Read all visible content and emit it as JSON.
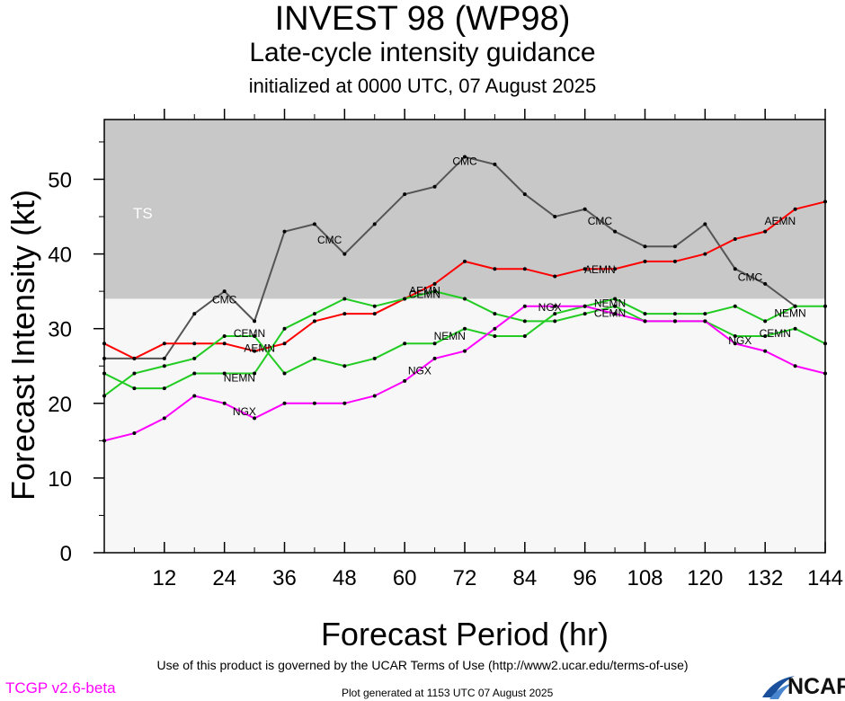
{
  "header": {
    "title": "INVEST 98 (WP98)",
    "subtitle": "Late-cycle intensity guidance",
    "initialized": "initialized at 0000 UTC, 07 August 2025"
  },
  "footer": {
    "terms": "Use of this product is governed by the UCAR Terms of Use (http://www2.ucar.edu/terms-of-use)",
    "version": "TCGP v2.6-beta",
    "generated": "Plot generated at 1153 UTC   07 August 2025",
    "logo_text": "NCAR"
  },
  "chart_data": {
    "type": "line",
    "xlabel": "Forecast Period (hr)",
    "ylabel": "Forecast Intensity (kt)",
    "xlim": [
      0,
      144
    ],
    "ylim": [
      0,
      58
    ],
    "xticks": [
      12,
      24,
      36,
      48,
      60,
      72,
      84,
      96,
      108,
      120,
      132,
      144
    ],
    "yticks": [
      0,
      10,
      20,
      30,
      40,
      50
    ],
    "bands": [
      {
        "label": "TS",
        "from": 34,
        "to": 58,
        "color": "#c8c8c8"
      },
      {
        "label": "",
        "from": 0,
        "to": 34,
        "color": "#f7f7f7"
      }
    ],
    "x": [
      0,
      6,
      12,
      18,
      24,
      30,
      36,
      42,
      48,
      54,
      60,
      66,
      72,
      78,
      84,
      90,
      96,
      102,
      108,
      114,
      120,
      126,
      132,
      138,
      144
    ],
    "series": [
      {
        "name": "CMC",
        "color": "#555555",
        "values": [
          26,
          26,
          26,
          32,
          35,
          31,
          43,
          44,
          40,
          44,
          48,
          49,
          53,
          52,
          48,
          45,
          46,
          43,
          41,
          41,
          44,
          38,
          36,
          33,
          null
        ]
      },
      {
        "name": "AEMN",
        "color": "#ff0000",
        "values": [
          28,
          26,
          28,
          28,
          28,
          27,
          28,
          31,
          32,
          32,
          34,
          36,
          39,
          38,
          38,
          37,
          38,
          38,
          39,
          39,
          40,
          42,
          43,
          46,
          47
        ]
      },
      {
        "name": "CEMN",
        "color": "#22cc22",
        "values": [
          24,
          22,
          22,
          24,
          24,
          24,
          30,
          32,
          34,
          33,
          34,
          35,
          34,
          32,
          31,
          31,
          32,
          33,
          31,
          31,
          31,
          29,
          29,
          30,
          28
        ]
      },
      {
        "name": "NEMN",
        "color": "#22cc22",
        "values": [
          21,
          24,
          25,
          26,
          29,
          29,
          24,
          26,
          25,
          26,
          28,
          28,
          30,
          29,
          29,
          32,
          33,
          34,
          32,
          32,
          32,
          33,
          31,
          33,
          33
        ]
      },
      {
        "name": "NGX",
        "color": "#ff00ff",
        "values": [
          15,
          16,
          18,
          21,
          20,
          18,
          20,
          20,
          20,
          21,
          23,
          26,
          27,
          30,
          33,
          33,
          33,
          32,
          31,
          31,
          31,
          28,
          27,
          25,
          24
        ]
      }
    ],
    "labels": [
      {
        "series": "CMC",
        "x": 24,
        "y": 34,
        "text": "CMC"
      },
      {
        "series": "CMC",
        "x": 45,
        "y": 42,
        "text": "CMC"
      },
      {
        "series": "CMC",
        "x": 72,
        "y": 52.5,
        "text": "CMC"
      },
      {
        "series": "CMC",
        "x": 99,
        "y": 44.5,
        "text": "CMC"
      },
      {
        "series": "CMC",
        "x": 129,
        "y": 37,
        "text": "CMC"
      },
      {
        "series": "AEMN",
        "x": 31,
        "y": 27.5,
        "text": "AEMN"
      },
      {
        "series": "AEMN",
        "x": 64,
        "y": 35.2,
        "text": "AEMN"
      },
      {
        "series": "AEMN",
        "x": 99,
        "y": 38,
        "text": "AEMN"
      },
      {
        "series": "AEMN",
        "x": 135,
        "y": 44.5,
        "text": "AEMN"
      },
      {
        "series": "CEMN",
        "x": 29,
        "y": 29.5,
        "text": "CEMN"
      },
      {
        "series": "CEMN",
        "x": 64,
        "y": 34.7,
        "text": "CEMN"
      },
      {
        "series": "CEMN",
        "x": 101,
        "y": 32.2,
        "text": "CEMN"
      },
      {
        "series": "CEMN",
        "x": 134,
        "y": 29.5,
        "text": "CEMN"
      },
      {
        "series": "NEMN",
        "x": 27,
        "y": 23.5,
        "text": "NEMN"
      },
      {
        "series": "NEMN",
        "x": 69,
        "y": 29.1,
        "text": "NEMN"
      },
      {
        "series": "NEMN",
        "x": 101,
        "y": 33.5,
        "text": "NEMN"
      },
      {
        "series": "NEMN",
        "x": 137,
        "y": 32.2,
        "text": "NEMN"
      },
      {
        "series": "NGX",
        "x": 28,
        "y": 19,
        "text": "NGX"
      },
      {
        "series": "NGX",
        "x": 63,
        "y": 24.5,
        "text": "NGX"
      },
      {
        "series": "NGX",
        "x": 89,
        "y": 33,
        "text": "NGX"
      },
      {
        "series": "NGX",
        "x": 127,
        "y": 28.5,
        "text": "NGX"
      }
    ]
  }
}
